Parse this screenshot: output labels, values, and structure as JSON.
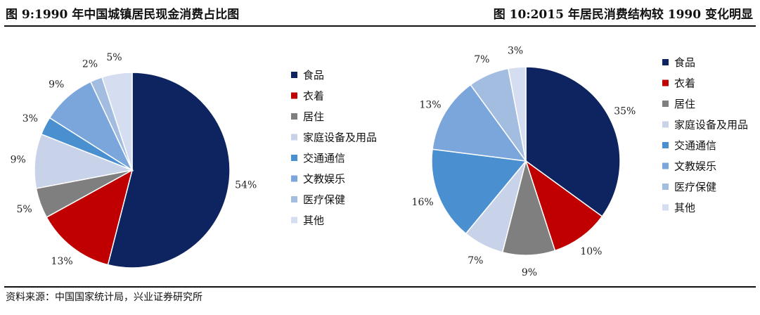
{
  "titles": {
    "left": "图 9:1990 年中国城镇居民现金消费占比图",
    "right": "图 10:2015 年居民消费结构较 1990 变化明显"
  },
  "source": "资料来源：中国国家统计局，兴业证券研究所",
  "colors": [
    "#0d2461",
    "#c00000",
    "#7f7f7f",
    "#c8d3ea",
    "#4a90d0",
    "#7aa6dc",
    "#a3bde0",
    "#d4def0"
  ],
  "chart_data": [
    {
      "type": "pie",
      "title": "图 9:1990 年中国城镇居民现金消费占比图",
      "categories": [
        "食品",
        "衣着",
        "居住",
        "家庭设备及用品",
        "交通通信",
        "文教娱乐",
        "医疗保健",
        "其他"
      ],
      "values": [
        54,
        13,
        5,
        9,
        3,
        9,
        2,
        5
      ],
      "labels": [
        "54%",
        "13%",
        "5%",
        "9%",
        "3%",
        "9%",
        "2%",
        "5%"
      ],
      "legend": "right"
    },
    {
      "type": "pie",
      "title": "图 10:2015 年居民消费结构较 1990 变化明显",
      "categories": [
        "食品",
        "衣着",
        "居住",
        "家庭设备及用品",
        "交通通信",
        "文教娱乐",
        "医疗保健",
        "其他"
      ],
      "values": [
        35,
        10,
        9,
        7,
        16,
        13,
        7,
        3
      ],
      "labels": [
        "35%",
        "10%",
        "9%",
        "7%",
        "16%",
        "13%",
        "7%",
        "3%"
      ],
      "legend": "right"
    }
  ]
}
